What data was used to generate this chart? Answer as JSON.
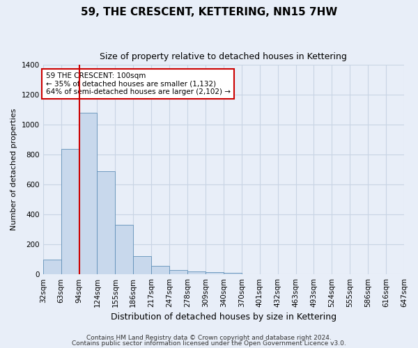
{
  "title": "59, THE CRESCENT, KETTERING, NN15 7HW",
  "subtitle": "Size of property relative to detached houses in Kettering",
  "xlabel": "Distribution of detached houses by size in Kettering",
  "ylabel": "Number of detached properties",
  "bar_values": [
    100,
    840,
    1080,
    690,
    330,
    120,
    55,
    30,
    20,
    15,
    10,
    0,
    0,
    0,
    0,
    0,
    0,
    0,
    0,
    0
  ],
  "bin_labels": [
    "32sqm",
    "63sqm",
    "94sqm",
    "124sqm",
    "155sqm",
    "186sqm",
    "217sqm",
    "247sqm",
    "278sqm",
    "309sqm",
    "340sqm",
    "370sqm",
    "401sqm",
    "432sqm",
    "463sqm",
    "493sqm",
    "524sqm",
    "555sqm",
    "586sqm",
    "616sqm",
    "647sqm"
  ],
  "bar_color": "#c8d8ec",
  "bar_edge_color": "#6090b8",
  "vline_x_index": 2,
  "vline_color": "#cc0000",
  "annotation_text": "59 THE CRESCENT: 100sqm\n← 35% of detached houses are smaller (1,132)\n64% of semi-detached houses are larger (2,102) →",
  "annotation_box_color": "#ffffff",
  "annotation_box_edge": "#cc0000",
  "ylim": [
    0,
    1400
  ],
  "yticks": [
    0,
    200,
    400,
    600,
    800,
    1000,
    1200,
    1400
  ],
  "grid_color": "#c8d4e4",
  "background_color": "#e8eef8",
  "plot_bg_color": "#e8eef8",
  "footnote1": "Contains HM Land Registry data © Crown copyright and database right 2024.",
  "footnote2": "Contains public sector information licensed under the Open Government Licence v3.0.",
  "title_fontsize": 11,
  "subtitle_fontsize": 9,
  "xlabel_fontsize": 9,
  "ylabel_fontsize": 8,
  "tick_fontsize": 7.5,
  "footnote_fontsize": 6.5
}
